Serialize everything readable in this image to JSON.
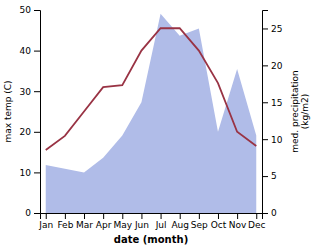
{
  "chart_data": {
    "type": "line",
    "categories": [
      "Jan",
      "Feb",
      "Mar",
      "Apr",
      "May",
      "Jun",
      "Jul",
      "Aug",
      "Sep",
      "Oct",
      "Nov",
      "Dec"
    ],
    "xlabel": "date (month)",
    "ylabel": "max temp (C)",
    "y2label": "med. precipitation\n(kg/m2)",
    "series": [
      {
        "type": "area",
        "axis": "y2",
        "color": "#b0bce8",
        "values": [
          6.5,
          6.0,
          5.5,
          7.5,
          10.5,
          15.0,
          27.0,
          24.0,
          25.0,
          11.0,
          19.5,
          10.5
        ]
      },
      {
        "type": "line",
        "color": "#993344",
        "values": [
          15.5,
          19.0,
          25.0,
          31.0,
          31.5,
          40.0,
          45.5,
          45.5,
          40.0,
          32.0,
          20.0,
          16.5
        ]
      }
    ],
    "ylim": [
      0,
      50
    ],
    "yticks": [
      0,
      10,
      20,
      30,
      40,
      50
    ],
    "y2lim": [
      0,
      27.5
    ],
    "y2ticks": [
      0,
      5,
      10,
      15,
      20,
      25
    ],
    "grid": false
  }
}
